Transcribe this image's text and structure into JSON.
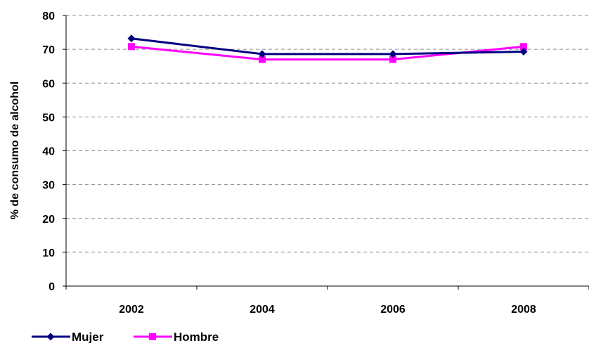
{
  "chart_data": {
    "type": "line",
    "title": "",
    "xlabel": "",
    "ylabel": "% de consumo de alcohol",
    "categories": [
      "2002",
      "2004",
      "2006",
      "2008"
    ],
    "ylim": [
      0,
      80
    ],
    "yticks": [
      "0",
      "10",
      "20",
      "30",
      "40",
      "50",
      "60",
      "70",
      "80"
    ],
    "grid": "horizontal dashed",
    "legend": "bottom-left",
    "series": [
      {
        "name": "Mujer",
        "values": [
          73.2,
          68.6,
          68.6,
          69.3
        ],
        "color": "#000080",
        "marker": "diamond"
      },
      {
        "name": "Hombre",
        "values": [
          70.8,
          67.0,
          67.0,
          70.8
        ],
        "color": "#ff00ff",
        "marker": "square"
      }
    ]
  }
}
